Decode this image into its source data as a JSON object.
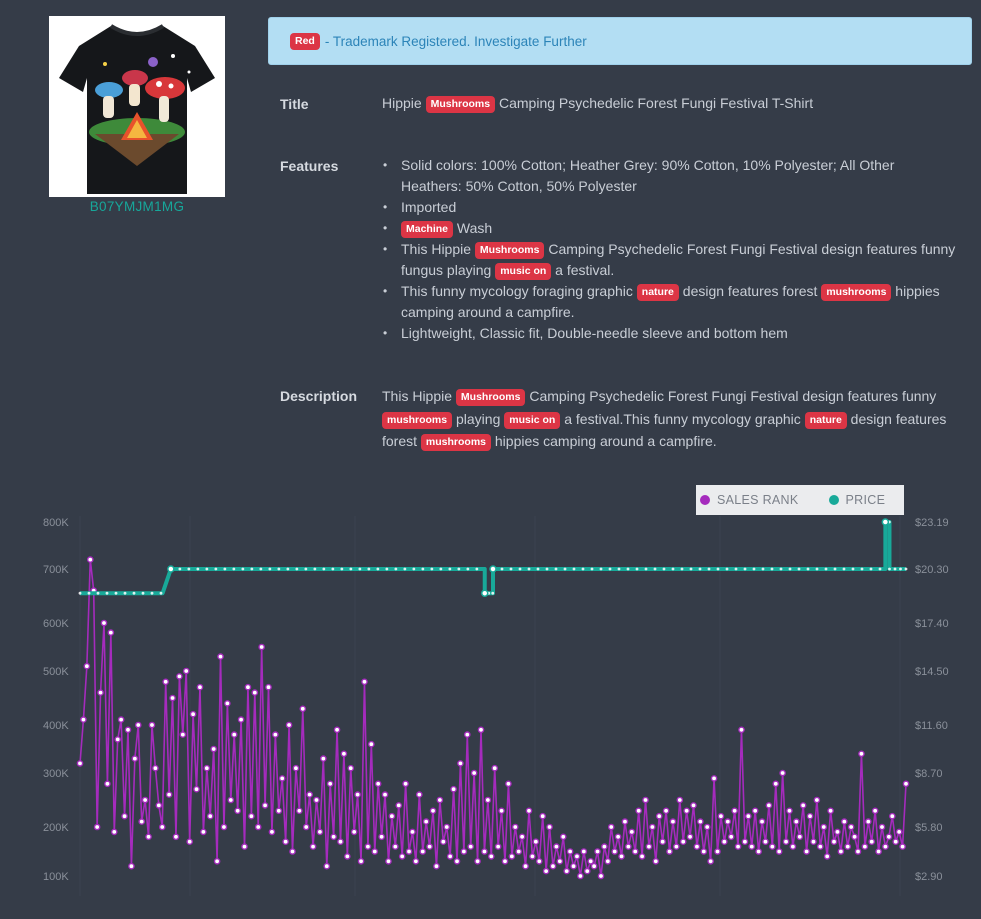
{
  "product": {
    "asin": "B07YMJM1MG",
    "image_icon": "tshirt-mushroom-print-image"
  },
  "alert": {
    "tag": "Red",
    "message": "- Trademark Registered. Investigate Further"
  },
  "title": {
    "label": "Title",
    "before": "Hippie ",
    "flag": "Mushrooms",
    "after": " Camping Psychedelic Forest Fungi Festival T-Shirt"
  },
  "features": {
    "label": "Features",
    "f1": "Solid colors: 100% Cotton; Heather Grey: 90% Cotton, 10% Polyester; All Other Heathers: 50% Cotton, 50% Polyester",
    "f2": "Imported",
    "f3_flag": "Machine",
    "f3_after": " Wash",
    "f4_a": "This Hippie ",
    "f4_flag1": "Mushrooms",
    "f4_b": " Camping Psychedelic Forest Fungi Festival design features funny fungus playing ",
    "f4_flag2": "music on",
    "f4_c": " a festival.",
    "f5_a": "This funny mycology foraging graphic ",
    "f5_flag1": "nature",
    "f5_b": " design features forest ",
    "f5_flag2": "mushrooms",
    "f5_c": " hippies camping around a campfire.",
    "f6": "Lightweight, Classic fit, Double-needle sleeve and bottom hem"
  },
  "description": {
    "label": "Description",
    "a": "This Hippie ",
    "flag1": "Mushrooms",
    "b": " Camping Psychedelic Forest Fungi Festival design features funny ",
    "flag2": "mushrooms",
    "c": " playing ",
    "flag3": "music on",
    "d": " a festival.This funny mycology graphic ",
    "flag4": "nature",
    "e": " design features forest ",
    "flag5": "mushrooms",
    "f": " hippies camping around a campfire."
  },
  "colors": {
    "flag_red": "#dc3545",
    "sales_rank": "#a52bbd",
    "price": "#18a999",
    "alert_bg": "#b3def3",
    "asin": "#17a79a"
  },
  "chart_data": {
    "type": "line",
    "legend": [
      "SALES RANK",
      "PRICE"
    ],
    "legend_placement": "top-right",
    "y_left_ticks": [
      "800K",
      "700K",
      "600K",
      "500K",
      "400K",
      "300K",
      "200K",
      "100K"
    ],
    "y_right_ticks": [
      "$23.19",
      "$20.30",
      "$17.40",
      "$14.50",
      "$11.60",
      "$8.70",
      "$5.80",
      "$2.90"
    ],
    "ylim_left": [
      100000,
      800000
    ],
    "ylim_right": [
      2.9,
      23.19
    ],
    "series": [
      {
        "name": "PRICE",
        "segments": [
          {
            "from": 0.0,
            "to": 0.1,
            "value": 19.0
          },
          {
            "from": 0.11,
            "to": 0.49,
            "value": 20.3
          },
          {
            "from": 0.49,
            "to": 0.5,
            "value": 19.0
          },
          {
            "from": 0.5,
            "to": 0.975,
            "value": 20.3
          },
          {
            "from": 0.975,
            "to": 0.98,
            "value": 23.19
          },
          {
            "from": 0.98,
            "to": 1.0,
            "value": 20.3
          }
        ]
      },
      {
        "name": "SALES RANK",
        "values": [
          320000,
          410000,
          510000,
          720000,
          660000,
          200000,
          460000,
          600000,
          280000,
          580000,
          190000,
          370000,
          410000,
          220000,
          390000,
          120000,
          330000,
          400000,
          210000,
          250000,
          180000,
          400000,
          310000,
          240000,
          200000,
          480000,
          260000,
          450000,
          180000,
          490000,
          380000,
          500000,
          170000,
          420000,
          270000,
          470000,
          190000,
          310000,
          220000,
          350000,
          130000,
          530000,
          200000,
          440000,
          250000,
          380000,
          230000,
          410000,
          160000,
          470000,
          220000,
          460000,
          200000,
          550000,
          240000,
          470000,
          190000,
          380000,
          230000,
          290000,
          170000,
          400000,
          150000,
          310000,
          230000,
          430000,
          200000,
          260000,
          160000,
          250000,
          190000,
          330000,
          120000,
          280000,
          180000,
          390000,
          170000,
          340000,
          140000,
          310000,
          190000,
          260000,
          130000,
          480000,
          160000,
          360000,
          150000,
          280000,
          180000,
          260000,
          130000,
          220000,
          160000,
          240000,
          140000,
          280000,
          150000,
          190000,
          130000,
          260000,
          150000,
          210000,
          160000,
          230000,
          120000,
          250000,
          170000,
          200000,
          140000,
          270000,
          130000,
          320000,
          150000,
          380000,
          160000,
          300000,
          130000,
          390000,
          150000,
          250000,
          140000,
          310000,
          160000,
          230000,
          130000,
          280000,
          140000,
          200000,
          150000,
          180000,
          120000,
          230000,
          140000,
          170000,
          130000,
          220000,
          110000,
          200000,
          120000,
          160000,
          130000,
          180000,
          110000,
          150000,
          120000,
          140000,
          100000,
          150000,
          110000,
          130000,
          120000,
          150000,
          100000,
          160000,
          130000,
          200000,
          150000,
          180000,
          140000,
          210000,
          160000,
          190000,
          150000,
          230000,
          140000,
          250000,
          160000,
          200000,
          130000,
          220000,
          170000,
          230000,
          150000,
          210000,
          160000,
          250000,
          170000,
          230000,
          180000,
          240000,
          160000,
          210000,
          150000,
          200000,
          130000,
          290000,
          150000,
          220000,
          170000,
          210000,
          180000,
          230000,
          160000,
          390000,
          170000,
          220000,
          160000,
          230000,
          150000,
          210000,
          170000,
          240000,
          160000,
          280000,
          150000,
          300000,
          170000,
          230000,
          160000,
          210000,
          180000,
          240000,
          150000,
          220000,
          170000,
          250000,
          160000,
          200000,
          140000,
          230000,
          170000,
          190000,
          150000,
          210000,
          160000,
          200000,
          180000,
          150000,
          340000,
          160000,
          210000,
          170000,
          230000,
          150000,
          200000,
          160000,
          180000,
          220000,
          170000,
          190000,
          160000,
          280000
        ]
      }
    ]
  }
}
